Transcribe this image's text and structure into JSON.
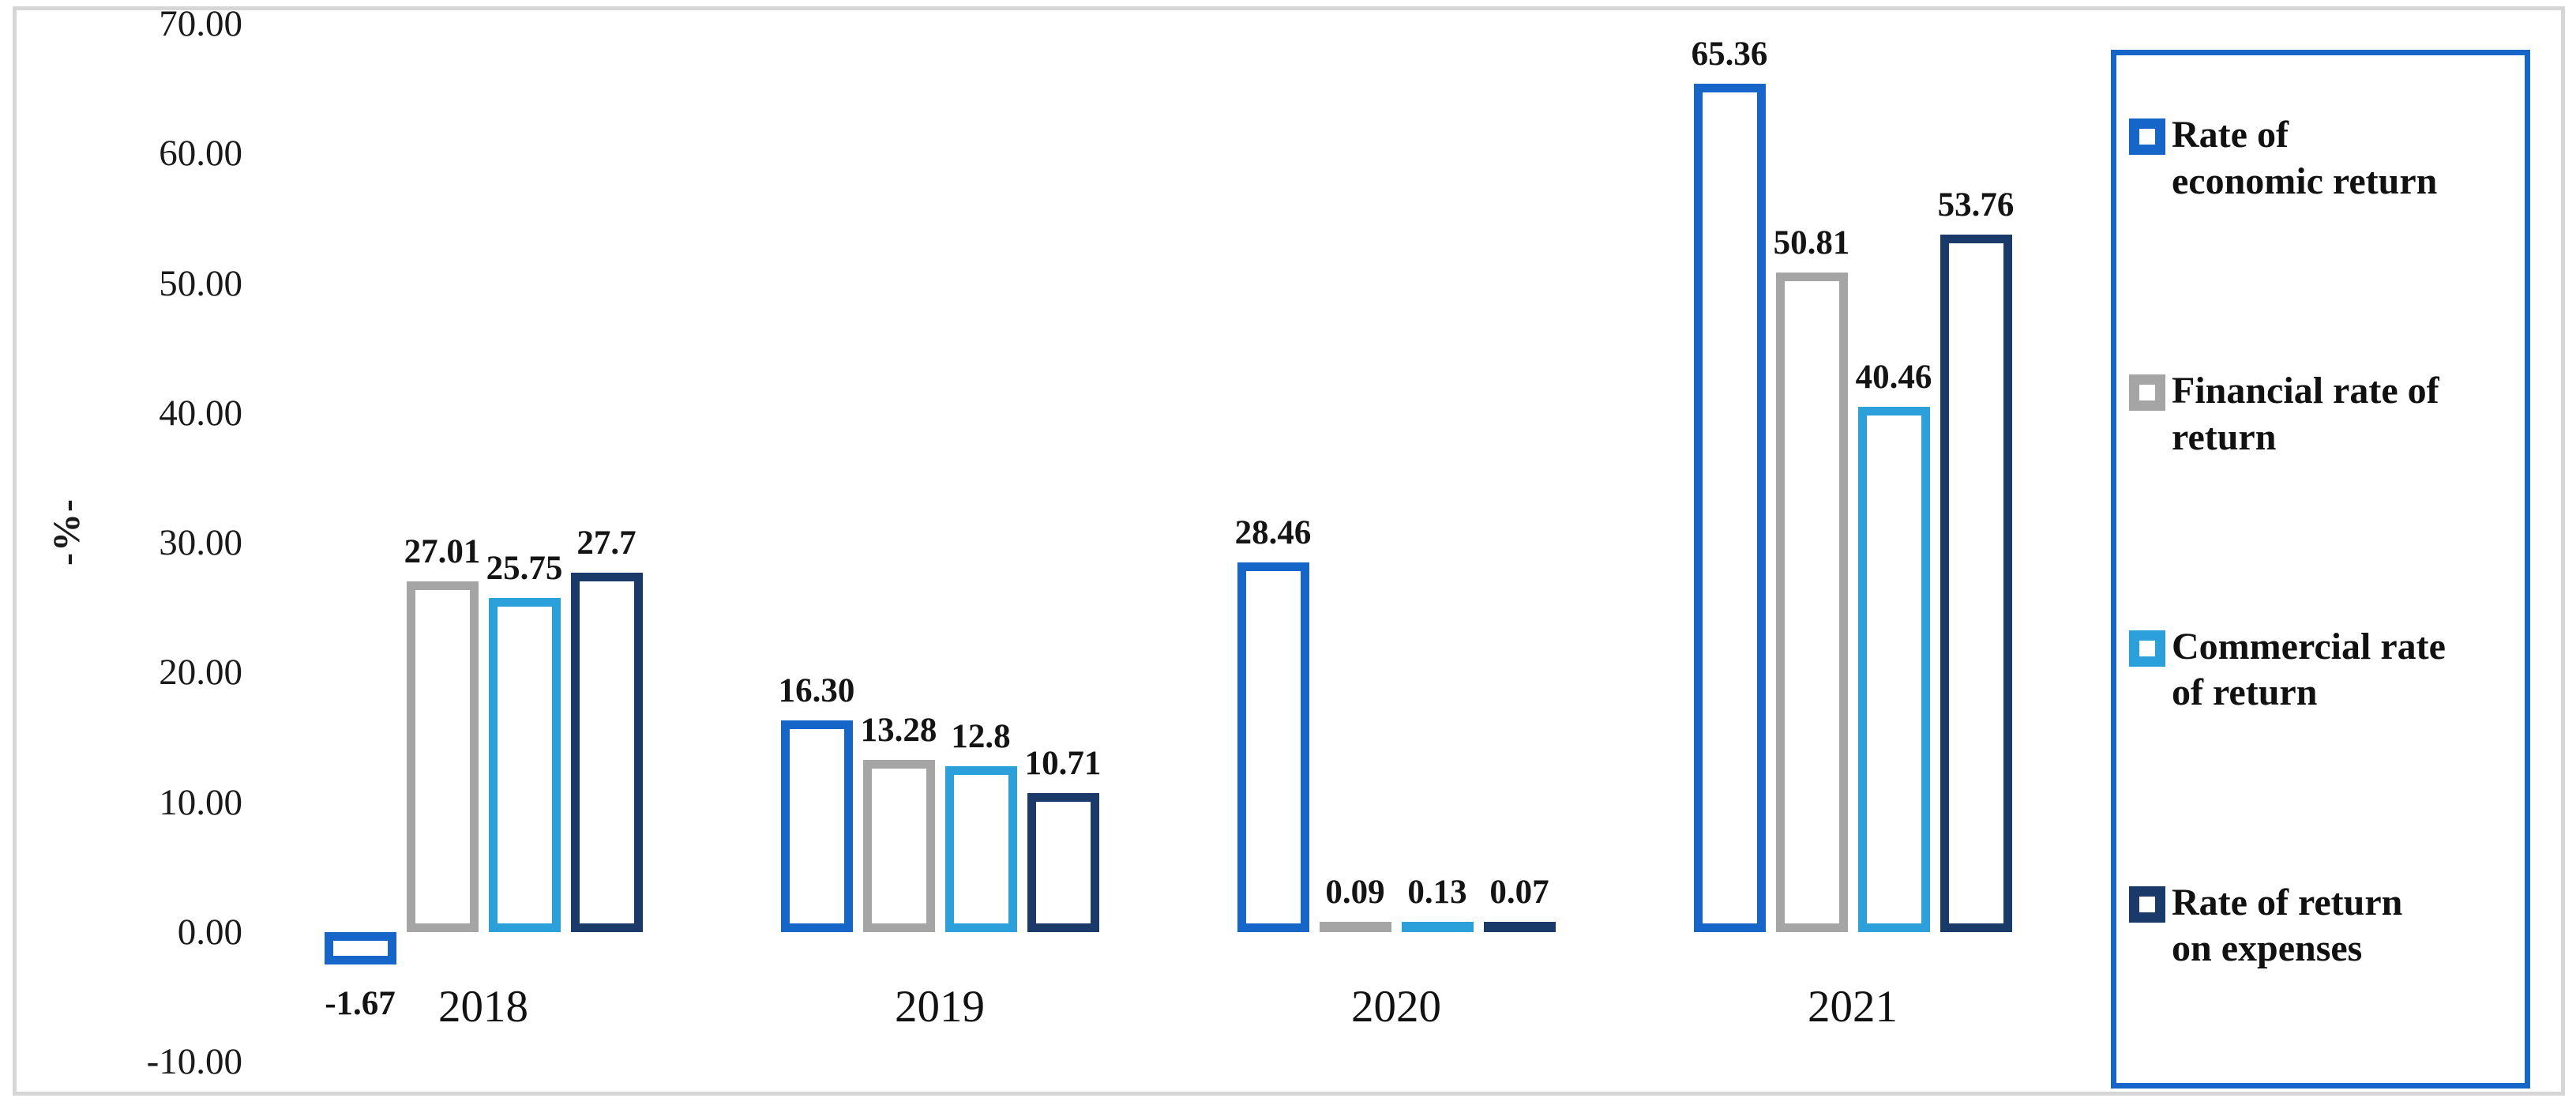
{
  "chart_data": {
    "type": "bar",
    "title": "",
    "ylabel": "-%-",
    "xlabel": "",
    "categories": [
      "2018",
      "2019",
      "2020",
      "2021"
    ],
    "series": [
      {
        "name": "Rate of economic return",
        "color": "#1566C8",
        "values": [
          -1.67,
          16.3,
          28.46,
          65.36
        ],
        "labels": [
          "-1.67",
          "16.30",
          "28.46",
          "65.36"
        ]
      },
      {
        "name": "Financial rate of return",
        "color": "#A5A5A5",
        "values": [
          27.01,
          13.28,
          0.09,
          50.81
        ],
        "labels": [
          "27.01",
          "13.28",
          "0.09",
          "50.81"
        ]
      },
      {
        "name": "Commercial rate of return",
        "color": "#2BA0DA",
        "values": [
          25.75,
          12.8,
          0.13,
          40.46
        ],
        "labels": [
          "25.75",
          "12.8",
          "0.13",
          "40.46"
        ]
      },
      {
        "name": "Rate of return on expenses",
        "color": "#1A3B69",
        "values": [
          27.7,
          10.71,
          0.07,
          53.76
        ],
        "labels": [
          "27.7",
          "10.71",
          "0.07",
          "53.76"
        ]
      }
    ],
    "y_ticks": [
      "70.00",
      "60.00",
      "50.00",
      "40.00",
      "30.00",
      "20.00",
      "10.00",
      "0.00",
      "-10.00"
    ],
    "y_tick_values": [
      70,
      60,
      50,
      40,
      30,
      20,
      10,
      0,
      -10
    ],
    "ylim": [
      -10,
      70
    ],
    "grid": false,
    "bar_style": "hollow-outline",
    "legend_position": "right"
  },
  "legend": {
    "border_color": "#1566C8",
    "items": [
      {
        "lines": [
          "Rate of",
          "economic return"
        ],
        "color": "#1566C8"
      },
      {
        "lines": [
          "Financial rate of",
          "return"
        ],
        "color": "#A5A5A5"
      },
      {
        "lines": [
          "Commercial rate",
          "of return"
        ],
        "color": "#2BA0DA"
      },
      {
        "lines": [
          "Rate of return",
          "on expenses"
        ],
        "color": "#1A3B69"
      }
    ]
  }
}
